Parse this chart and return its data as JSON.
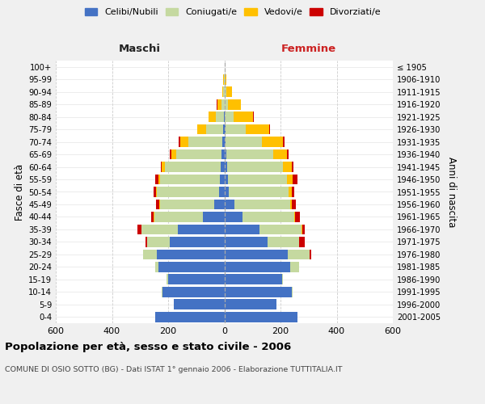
{
  "age_groups": [
    "0-4",
    "5-9",
    "10-14",
    "15-19",
    "20-24",
    "25-29",
    "30-34",
    "35-39",
    "40-44",
    "45-49",
    "50-54",
    "55-59",
    "60-64",
    "65-69",
    "70-74",
    "75-79",
    "80-84",
    "85-89",
    "90-94",
    "95-99",
    "100+"
  ],
  "birth_years": [
    "2001-2005",
    "1996-2000",
    "1991-1995",
    "1986-1990",
    "1981-1985",
    "1976-1980",
    "1971-1975",
    "1966-1970",
    "1961-1965",
    "1956-1960",
    "1951-1955",
    "1946-1950",
    "1941-1945",
    "1936-1940",
    "1931-1935",
    "1926-1930",
    "1921-1925",
    "1916-1920",
    "1911-1915",
    "1906-1910",
    "≤ 1905"
  ],
  "colors": {
    "celibi": "#4472c4",
    "coniugati": "#c5d9a0",
    "vedovi": "#ffc000",
    "divorziati": "#cc0000"
  },
  "maschi": {
    "celibi": [
      245,
      180,
      220,
      200,
      235,
      240,
      195,
      165,
      75,
      35,
      20,
      15,
      12,
      10,
      8,
      5,
      2,
      0,
      0,
      0,
      0
    ],
    "coniugati": [
      0,
      0,
      2,
      5,
      12,
      50,
      80,
      130,
      175,
      195,
      220,
      215,
      200,
      160,
      120,
      60,
      28,
      10,
      3,
      1,
      0
    ],
    "vedovi": [
      0,
      0,
      0,
      0,
      0,
      0,
      0,
      1,
      1,
      2,
      3,
      5,
      10,
      18,
      28,
      30,
      25,
      15,
      5,
      2,
      0
    ],
    "divorziati": [
      0,
      0,
      0,
      0,
      0,
      0,
      5,
      12,
      10,
      10,
      10,
      12,
      5,
      5,
      8,
      2,
      2,
      1,
      0,
      0,
      0
    ]
  },
  "femmine": {
    "celibi": [
      260,
      185,
      240,
      205,
      235,
      225,
      155,
      125,
      65,
      35,
      15,
      12,
      10,
      8,
      5,
      5,
      2,
      2,
      2,
      0,
      0
    ],
    "coniugati": [
      0,
      0,
      2,
      5,
      30,
      80,
      110,
      150,
      185,
      200,
      215,
      210,
      200,
      165,
      130,
      70,
      30,
      12,
      5,
      2,
      0
    ],
    "vedovi": [
      0,
      0,
      0,
      0,
      0,
      0,
      1,
      2,
      3,
      5,
      10,
      22,
      30,
      50,
      75,
      85,
      70,
      45,
      20,
      5,
      0
    ],
    "divorziati": [
      0,
      0,
      0,
      0,
      0,
      5,
      20,
      10,
      15,
      15,
      10,
      15,
      5,
      5,
      5,
      3,
      2,
      1,
      1,
      0,
      0
    ]
  },
  "xlim": 600,
  "title": "Popolazione per età, sesso e stato civile - 2006",
  "subtitle": "COMUNE DI OSIO SOTTO (BG) - Dati ISTAT 1° gennaio 2006 - Elaborazione TUTTITALIA.IT",
  "ylabel_left": "Fasce di età",
  "ylabel_right": "Anni di nascita",
  "xlabel_left": "Maschi",
  "xlabel_right": "Femmine",
  "bg_color": "#f0f0f0",
  "plot_bg_color": "#ffffff"
}
